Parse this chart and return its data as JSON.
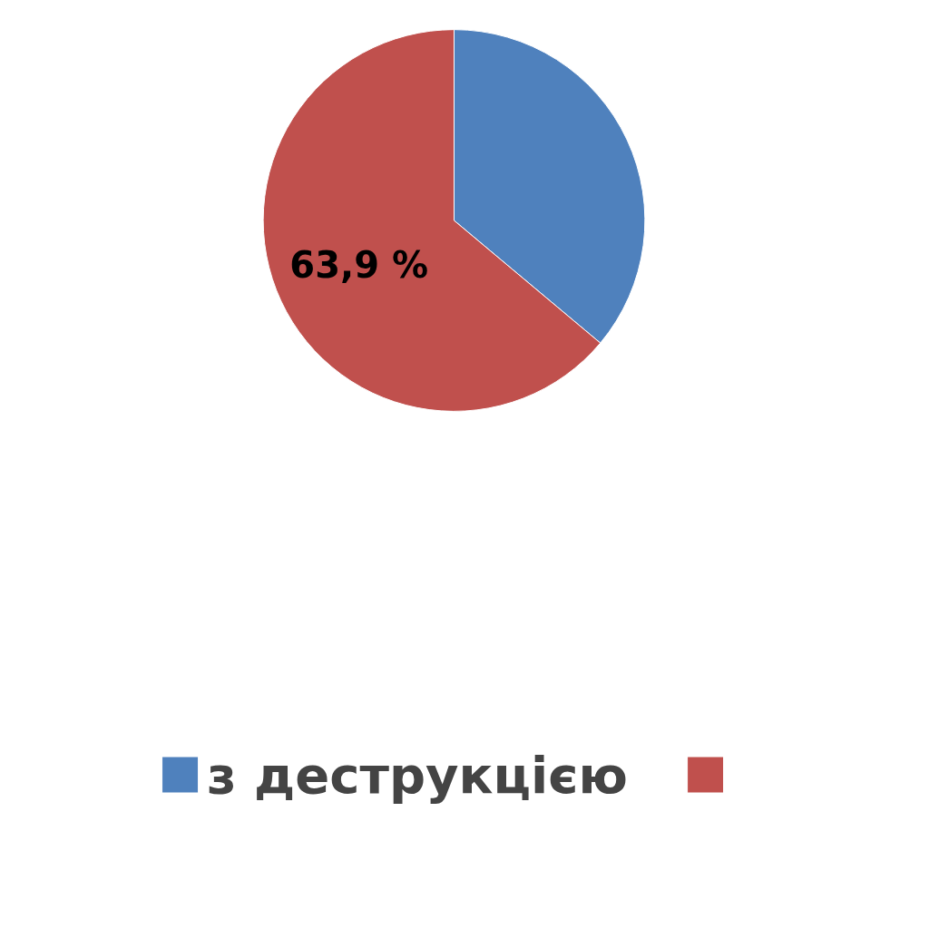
{
  "chart_data": {
    "type": "pie",
    "categories": [
      "з деструкцією",
      null
    ],
    "values": [
      36.1,
      63.9
    ],
    "colors": [
      "#4f81bd",
      "#c0504d"
    ],
    "value_labels": [
      null,
      "63,9 %"
    ],
    "legend": "bottom"
  }
}
